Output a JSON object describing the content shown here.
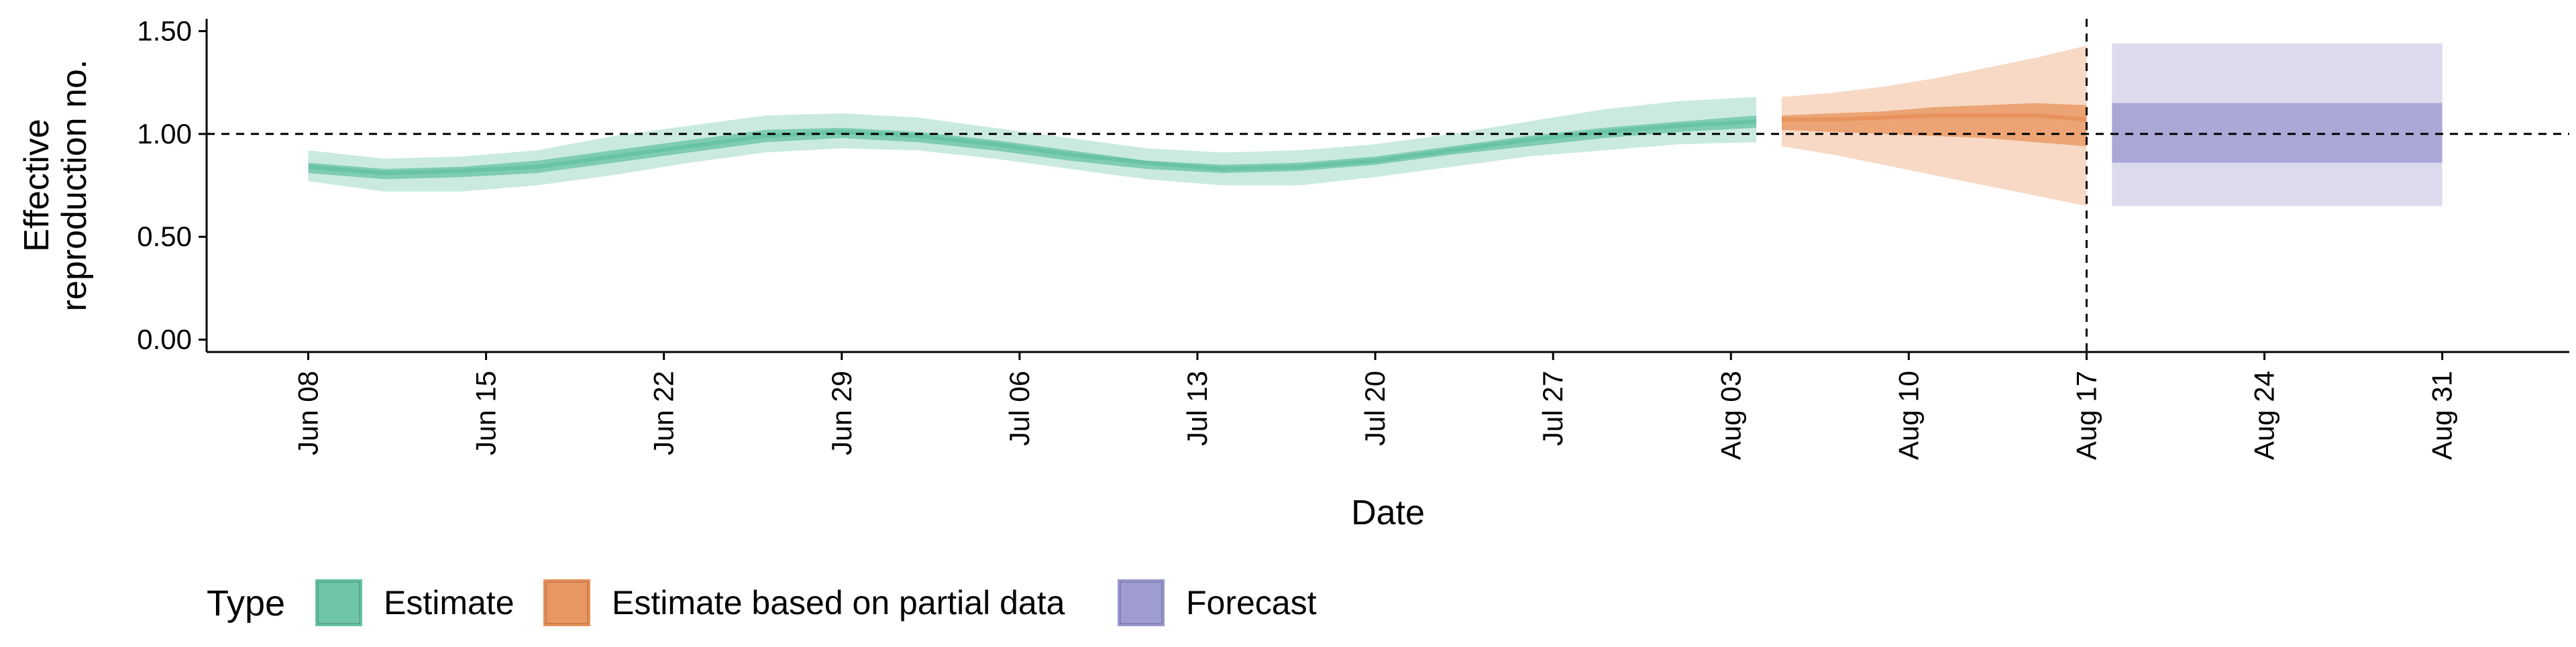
{
  "chart_data": {
    "type": "area",
    "title": "",
    "xlabel": "Date",
    "ylabel_lines": [
      "Effective",
      "reproduction no."
    ],
    "x_tick_labels": [
      "Jun 08",
      "Jun 15",
      "Jun 22",
      "Jun 29",
      "Jul 06",
      "Jul 13",
      "Jul 20",
      "Jul 27",
      "Aug 03",
      "Aug 10",
      "Aug 17",
      "Aug 24",
      "Aug 31"
    ],
    "x_tick_dates": [
      "2020-06-08",
      "2020-06-15",
      "2020-06-22",
      "2020-06-29",
      "2020-07-06",
      "2020-07-13",
      "2020-07-20",
      "2020-07-27",
      "2020-08-03",
      "2020-08-10",
      "2020-08-17",
      "2020-08-24",
      "2020-08-31"
    ],
    "xlim": [
      "2020-06-04",
      "2020-09-05"
    ],
    "y_tick_labels": [
      "0.00",
      "0.50",
      "1.00",
      "1.50"
    ],
    "y_tick_values": [
      0,
      0.5,
      1.0,
      1.5
    ],
    "ylim": [
      -0.06,
      1.56
    ],
    "reference_line_y": 1.0,
    "vertical_line_date": "2020-08-17",
    "grid": false,
    "legend": {
      "position": "bottom-left",
      "title": "Type",
      "entries": [
        {
          "label": "Estimate",
          "color": "#66c2a5"
        },
        {
          "label": "Estimate based on partial data",
          "color": "#e8915a"
        },
        {
          "label": "Forecast",
          "color": "#9a97cf"
        }
      ]
    },
    "colors": {
      "estimate": "#66c2a5",
      "partial": "#e8915a",
      "forecast": "#9a97cf"
    },
    "series": [
      {
        "name": "Estimate",
        "dates": [
          "2020-06-08",
          "2020-06-11",
          "2020-06-14",
          "2020-06-17",
          "2020-06-20",
          "2020-06-23",
          "2020-06-26",
          "2020-06-29",
          "2020-07-02",
          "2020-07-05",
          "2020-07-08",
          "2020-07-11",
          "2020-07-14",
          "2020-07-17",
          "2020-07-20",
          "2020-07-23",
          "2020-07-26",
          "2020-07-29",
          "2020-08-01",
          "2020-08-04"
        ],
        "upper_90": [
          0.92,
          0.88,
          0.89,
          0.92,
          0.99,
          1.04,
          1.09,
          1.1,
          1.08,
          1.03,
          0.98,
          0.93,
          0.91,
          0.92,
          0.95,
          1.0,
          1.06,
          1.12,
          1.16,
          1.18
        ],
        "upper_50": [
          0.86,
          0.83,
          0.84,
          0.87,
          0.92,
          0.97,
          1.02,
          1.03,
          1.01,
          0.97,
          0.92,
          0.87,
          0.85,
          0.86,
          0.89,
          0.94,
          0.99,
          1.03,
          1.06,
          1.09
        ],
        "median": [
          0.84,
          0.81,
          0.82,
          0.84,
          0.89,
          0.94,
          0.99,
          1.01,
          0.99,
          0.95,
          0.9,
          0.86,
          0.83,
          0.84,
          0.87,
          0.92,
          0.97,
          1.01,
          1.04,
          1.06
        ],
        "lower_50": [
          0.81,
          0.78,
          0.79,
          0.81,
          0.86,
          0.91,
          0.96,
          0.98,
          0.96,
          0.92,
          0.87,
          0.83,
          0.81,
          0.82,
          0.85,
          0.9,
          0.94,
          0.98,
          1.01,
          1.03
        ],
        "lower_90": [
          0.77,
          0.72,
          0.72,
          0.75,
          0.8,
          0.86,
          0.91,
          0.93,
          0.92,
          0.88,
          0.83,
          0.78,
          0.75,
          0.75,
          0.79,
          0.84,
          0.89,
          0.92,
          0.95,
          0.96
        ]
      },
      {
        "name": "Estimate based on partial data",
        "dates": [
          "2020-08-05",
          "2020-08-07",
          "2020-08-09",
          "2020-08-11",
          "2020-08-13",
          "2020-08-15",
          "2020-08-17"
        ],
        "upper_90": [
          1.18,
          1.2,
          1.23,
          1.27,
          1.32,
          1.37,
          1.43
        ],
        "upper_50": [
          1.09,
          1.1,
          1.11,
          1.13,
          1.14,
          1.15,
          1.14
        ],
        "median": [
          1.07,
          1.07,
          1.08,
          1.09,
          1.09,
          1.09,
          1.07
        ],
        "lower_50": [
          1.02,
          1.01,
          1.0,
          0.99,
          0.98,
          0.96,
          0.94
        ],
        "lower_90": [
          0.94,
          0.9,
          0.85,
          0.8,
          0.75,
          0.7,
          0.65
        ]
      },
      {
        "name": "Forecast",
        "dates": [
          "2020-08-18",
          "2020-08-31"
        ],
        "upper_90": [
          1.44,
          1.44
        ],
        "upper_50": [
          1.15,
          1.15
        ],
        "lower_50": [
          0.86,
          0.86
        ],
        "lower_90": [
          0.65,
          0.65
        ]
      }
    ]
  }
}
